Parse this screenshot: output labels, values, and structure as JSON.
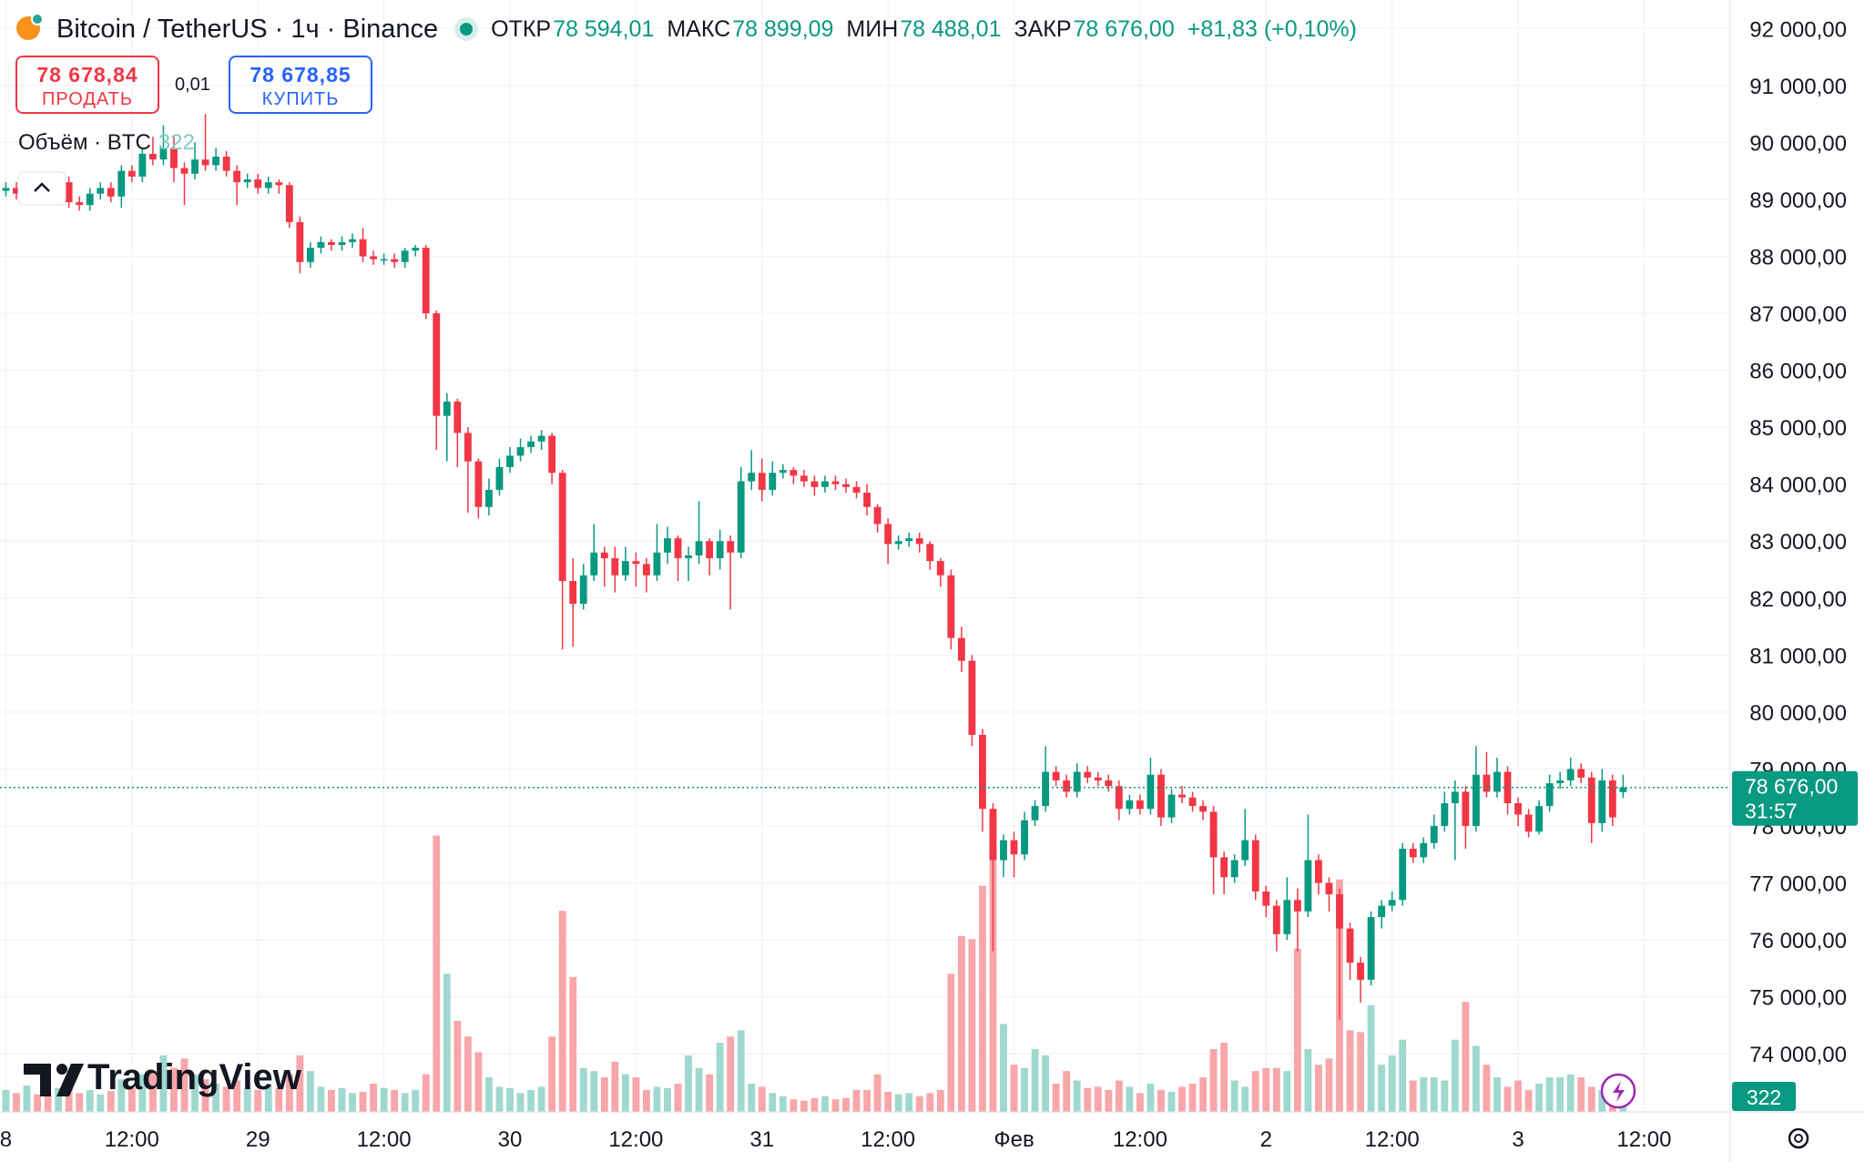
{
  "header": {
    "symbol": "Bitcoin / TetherUS · 1ч · Binance",
    "ohlc_names": [
      "ОТКР",
      "МАКС",
      "МИН",
      "ЗАКР"
    ],
    "ohlc_labels": [
      "78 594,01",
      "78 899,09",
      "78 488,01",
      "78 676,00"
    ],
    "change": "+81,83 (+0,10%)"
  },
  "trade": {
    "sell_price": "78 678,84",
    "sell_label": "ПРОДАТЬ",
    "quantity": "0,01",
    "buy_price": "78 678,85",
    "buy_label": "КУПИТЬ"
  },
  "volume_legend": "Объём · BTC",
  "brand": "TradingView",
  "chart_data": {
    "type": "candlestick",
    "open": [
      89150,
      89200,
      89100,
      89250,
      89200,
      89150,
      89300,
      88950,
      88900,
      89100,
      89200,
      89050,
      89500,
      89400,
      89800,
      89700,
      89900,
      89550,
      89450,
      89700,
      89600,
      89750,
      89500,
      89300,
      89350,
      89200,
      89300,
      89250,
      88600,
      87900,
      88150,
      88250,
      88200,
      88250,
      88300,
      88000,
      87950,
      87950,
      87900,
      88100,
      88150,
      87000,
      85200,
      85450,
      84900,
      84400,
      83600,
      83900,
      84300,
      84500,
      84650,
      84750,
      84850,
      84200,
      82300,
      81900,
      82400,
      82800,
      82700,
      82400,
      82650,
      82600,
      82400,
      82800,
      83050,
      82700,
      82750,
      83000,
      82700,
      83000,
      82800,
      84050,
      84200,
      83900,
      84200,
      84250,
      84150,
      84050,
      83950,
      84050,
      84000,
      83950,
      83850,
      83600,
      83300,
      82950,
      83000,
      83050,
      82950,
      82650,
      82400,
      81300,
      80900,
      79600,
      78300,
      77400,
      77750,
      77500,
      78100,
      78350,
      78950,
      78800,
      78600,
      78950,
      78850,
      78800,
      78700,
      78300,
      78450,
      78300,
      78900,
      78150,
      78550,
      78500,
      78350,
      78250,
      77450,
      77100,
      77400,
      77750,
      76850,
      76600,
      76100,
      76700,
      76500,
      77400,
      77000,
      76800,
      76200,
      75600,
      75300,
      76400,
      76600,
      76700,
      77600,
      77450,
      77700,
      78000,
      78400,
      78600,
      78000,
      78900,
      78600,
      78950,
      78400,
      78200,
      77900,
      78350,
      78750,
      78800,
      79000,
      78850,
      78050,
      78800,
      78594.01
    ],
    "high": [
      89300,
      89300,
      89350,
      89350,
      89300,
      89400,
      89400,
      89050,
      89200,
      89300,
      89300,
      89600,
      89600,
      89900,
      90100,
      90300,
      90100,
      89650,
      90000,
      90500,
      89900,
      89850,
      89600,
      89450,
      89450,
      89400,
      89350,
      89300,
      88700,
      88250,
      88350,
      88300,
      88350,
      88400,
      88500,
      88100,
      88050,
      88050,
      88150,
      88200,
      88200,
      87050,
      85600,
      85500,
      85000,
      84450,
      84100,
      84450,
      84650,
      84800,
      84850,
      84950,
      84900,
      84250,
      82700,
      82600,
      83300,
      82900,
      82900,
      82900,
      82800,
      82700,
      83300,
      83250,
      83100,
      82900,
      83700,
      83050,
      83200,
      83100,
      84300,
      84600,
      84450,
      84400,
      84350,
      84300,
      84250,
      84150,
      84150,
      84150,
      84100,
      84050,
      84000,
      83650,
      83400,
      83100,
      83150,
      83150,
      83000,
      82700,
      82500,
      81500,
      81000,
      79700,
      78400,
      77850,
      77900,
      78250,
      78450,
      79400,
      79050,
      78900,
      79100,
      79050,
      78950,
      78900,
      78800,
      78550,
      78550,
      79200,
      79000,
      78650,
      78700,
      78600,
      78450,
      78350,
      77550,
      77500,
      78300,
      77850,
      76950,
      76700,
      77100,
      76900,
      78200,
      77500,
      77100,
      76900,
      76300,
      75700,
      76500,
      76700,
      76850,
      77700,
      77700,
      77800,
      78200,
      78600,
      78800,
      78700,
      79400,
      79300,
      79200,
      79050,
      78500,
      78300,
      78450,
      78900,
      78950,
      79200,
      79100,
      78950,
      79000,
      78900,
      78899.09
    ],
    "low": [
      89050,
      89000,
      89000,
      89100,
      89050,
      89050,
      88850,
      88800,
      88800,
      89000,
      88950,
      88850,
      89300,
      89300,
      89600,
      89600,
      89300,
      88900,
      89350,
      89500,
      89500,
      89400,
      88900,
      89200,
      89100,
      89100,
      89100,
      88500,
      87700,
      87800,
      88050,
      88100,
      88100,
      88150,
      87900,
      87850,
      87850,
      87800,
      87800,
      88000,
      86900,
      84600,
      84400,
      84300,
      83500,
      83400,
      83450,
      83800,
      84200,
      84400,
      84550,
      84600,
      84000,
      81100,
      81150,
      81800,
      82300,
      82200,
      82100,
      82300,
      82200,
      82100,
      82300,
      82600,
      82300,
      82300,
      82600,
      82400,
      82500,
      81800,
      82700,
      83900,
      83700,
      83800,
      84100,
      84000,
      83950,
      83800,
      83850,
      83900,
      83850,
      83750,
      83450,
      83150,
      82600,
      82850,
      82900,
      82800,
      82500,
      82200,
      81100,
      80700,
      79400,
      77900,
      75800,
      77100,
      77100,
      77400,
      78000,
      78250,
      78700,
      78500,
      78500,
      78750,
      78700,
      78600,
      78100,
      78200,
      78200,
      78200,
      78000,
      78050,
      78400,
      78250,
      78100,
      76800,
      76800,
      77000,
      77300,
      76700,
      76400,
      75800,
      76000,
      75800,
      76400,
      76800,
      76500,
      74600,
      75300,
      74900,
      75200,
      76200,
      76500,
      76600,
      77350,
      77350,
      77600,
      77900,
      77400,
      77600,
      77900,
      78500,
      78500,
      78200,
      78000,
      77800,
      77850,
      78250,
      78650,
      78700,
      78750,
      77700,
      77900,
      78000,
      78488.01
    ],
    "close": [
      89200,
      89100,
      89250,
      89200,
      89150,
      89300,
      88950,
      88900,
      89100,
      89200,
      89050,
      89500,
      89400,
      89800,
      89700,
      89900,
      89550,
      89450,
      89700,
      89600,
      89750,
      89500,
      89300,
      89350,
      89200,
      89300,
      89250,
      88600,
      87900,
      88150,
      88250,
      88200,
      88250,
      88300,
      88000,
      87950,
      87950,
      87900,
      88100,
      88150,
      87000,
      85200,
      85450,
      84900,
      84400,
      83600,
      83900,
      84300,
      84500,
      84650,
      84750,
      84850,
      84200,
      82300,
      81900,
      82400,
      82800,
      82700,
      82400,
      82650,
      82600,
      82400,
      82800,
      83050,
      82700,
      82750,
      83000,
      82700,
      83000,
      82800,
      84050,
      84200,
      83900,
      84200,
      84250,
      84150,
      84050,
      83950,
      84050,
      84000,
      83950,
      83850,
      83600,
      83300,
      82950,
      83000,
      83050,
      82950,
      82650,
      82400,
      81300,
      80900,
      79600,
      78300,
      77400,
      77750,
      77500,
      78100,
      78350,
      78950,
      78800,
      78600,
      78950,
      78850,
      78800,
      78700,
      78300,
      78450,
      78300,
      78900,
      78150,
      78550,
      78500,
      78350,
      78250,
      77450,
      77100,
      77400,
      77750,
      76850,
      76600,
      76100,
      76700,
      76500,
      77400,
      77000,
      76800,
      76200,
      75600,
      75300,
      76400,
      76600,
      76700,
      77600,
      77450,
      77700,
      78000,
      78400,
      78600,
      78000,
      78900,
      78600,
      78950,
      78400,
      78200,
      77900,
      78350,
      78750,
      78800,
      79000,
      78850,
      78050,
      78800,
      78150,
      78676
    ],
    "volume": [
      350,
      300,
      420,
      280,
      320,
      380,
      450,
      300,
      350,
      280,
      330,
      520,
      380,
      600,
      650,
      900,
      700,
      850,
      600,
      520,
      450,
      400,
      500,
      380,
      350,
      420,
      380,
      600,
      900,
      650,
      400,
      350,
      380,
      300,
      320,
      450,
      380,
      350,
      300,
      350,
      600,
      4400,
      2200,
      1450,
      1200,
      950,
      550,
      400,
      380,
      300,
      350,
      400,
      1200,
      3200,
      2150,
      700,
      650,
      550,
      800,
      600,
      550,
      350,
      400,
      380,
      450,
      900,
      700,
      600,
      1100,
      1200,
      1300,
      450,
      400,
      300,
      250,
      200,
      180,
      220,
      250,
      200,
      220,
      350,
      350,
      600,
      320,
      280,
      300,
      250,
      300,
      350,
      2200,
      2800,
      2750,
      3600,
      4200,
      1400,
      750,
      700,
      1000,
      900,
      450,
      650,
      500,
      380,
      400,
      350,
      500,
      400,
      300,
      450,
      350,
      320,
      400,
      450,
      550,
      1000,
      1100,
      500,
      400,
      650,
      700,
      700,
      650,
      2600,
      1000,
      750,
      850,
      3700,
      1300,
      1270,
      1700,
      750,
      900,
      1150,
      500,
      550,
      550,
      500,
      1150,
      1750,
      1050,
      750,
      550,
      400,
      500,
      350,
      450,
      550,
      550,
      600,
      550,
      400,
      350,
      300,
      322
    ],
    "up_color": "#089981",
    "down_color": "#f23645",
    "volume_up_color": "#9fd8ce",
    "volume_down_color": "#f7a6a9",
    "xlim": [
      -0.56,
      164.2
    ],
    "xticks": [
      {
        "value": 0,
        "label": "8"
      },
      {
        "value": 12,
        "label": "12:00"
      },
      {
        "value": 24,
        "label": "29"
      },
      {
        "value": 36,
        "label": "12:00"
      },
      {
        "value": 48,
        "label": "30"
      },
      {
        "value": 60,
        "label": "12:00"
      },
      {
        "value": 72,
        "label": "31"
      },
      {
        "value": 84,
        "label": "12:00"
      },
      {
        "value": 96,
        "label": "Фев"
      },
      {
        "value": 108,
        "label": "12:00"
      },
      {
        "value": 120,
        "label": "2"
      },
      {
        "value": 132,
        "label": "12:00"
      },
      {
        "value": 144,
        "label": "3"
      },
      {
        "value": 156,
        "label": "12:00"
      }
    ],
    "ylim": [
      72980,
      92500
    ],
    "yticks": [
      {
        "value": 74000,
        "label": "74 000,00"
      },
      {
        "value": 75000,
        "label": "75 000,00"
      },
      {
        "value": 76000,
        "label": "76 000,00"
      },
      {
        "value": 77000,
        "label": "77 000,00"
      },
      {
        "value": 78000,
        "label": "78 000,00"
      },
      {
        "value": 79000,
        "label": "79 000,00"
      },
      {
        "value": 80000,
        "label": "80 000,00"
      },
      {
        "value": 81000,
        "label": "81 000,00"
      },
      {
        "value": 82000,
        "label": "82 000,00"
      },
      {
        "value": 83000,
        "label": "83 000,00"
      },
      {
        "value": 84000,
        "label": "84 000,00"
      },
      {
        "value": 85000,
        "label": "85 000,00"
      },
      {
        "value": 86000,
        "label": "86 000,00"
      },
      {
        "value": 87000,
        "label": "87 000,00"
      },
      {
        "value": 88000,
        "label": "88 000,00"
      },
      {
        "value": 89000,
        "label": "89 000,00"
      },
      {
        "value": 90000,
        "label": "90 000,00"
      },
      {
        "value": 91000,
        "label": "91 000,00"
      },
      {
        "value": 92000,
        "label": "92 000,00"
      }
    ],
    "volume_ylim": [
      0,
      17700
    ],
    "grid": true,
    "countdown": "31:57"
  }
}
